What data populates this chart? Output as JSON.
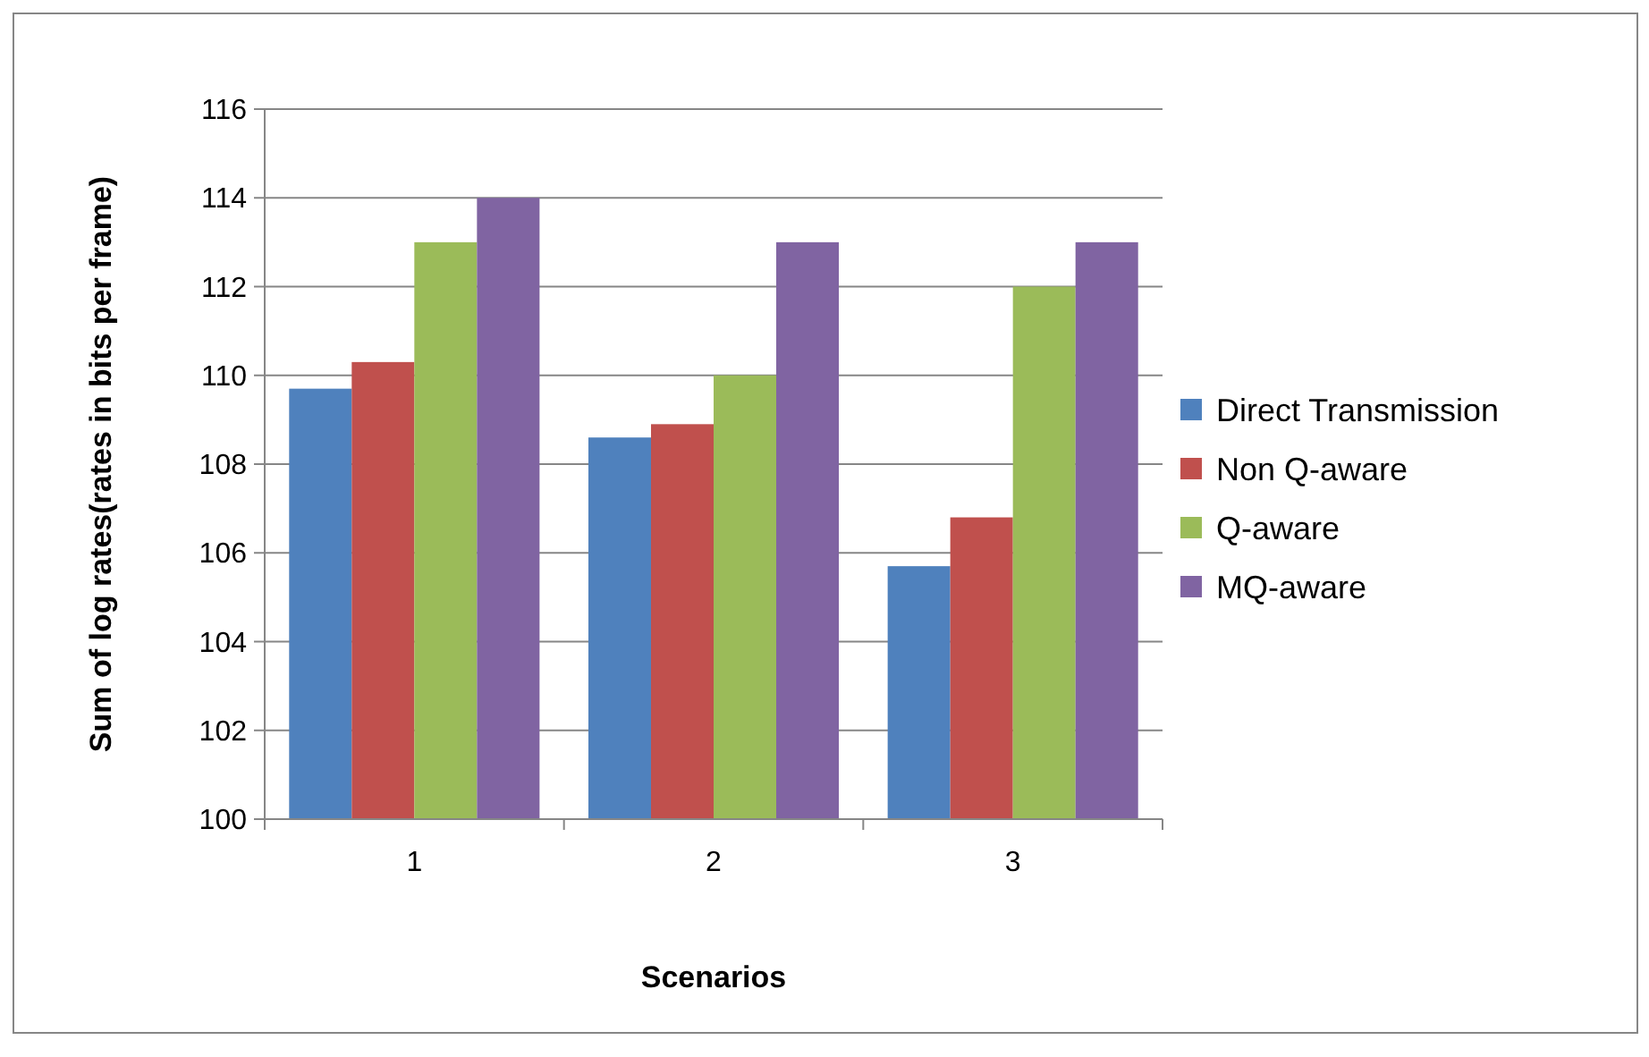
{
  "chart_data": {
    "type": "bar",
    "xlabel": "Scenarios",
    "ylabel": "Sum of log rates(rates in bits per frame)",
    "categories": [
      "1",
      "2",
      "3"
    ],
    "series": [
      {
        "name": "Direct Transmission",
        "color": "#4f81bd",
        "values": [
          109.7,
          108.6,
          105.7
        ]
      },
      {
        "name": "Non Q-aware",
        "color": "#c0504d",
        "values": [
          110.3,
          108.9,
          106.8
        ]
      },
      {
        "name": "Q-aware",
        "color": "#9bbb59",
        "values": [
          113,
          110,
          112
        ]
      },
      {
        "name": "MQ-aware",
        "color": "#8064a2",
        "values": [
          114,
          113,
          113
        ]
      }
    ],
    "ylim": [
      100,
      116
    ],
    "yticks": [
      100,
      102,
      104,
      106,
      108,
      110,
      112,
      114,
      116
    ],
    "grid": "y",
    "legend": "right"
  }
}
